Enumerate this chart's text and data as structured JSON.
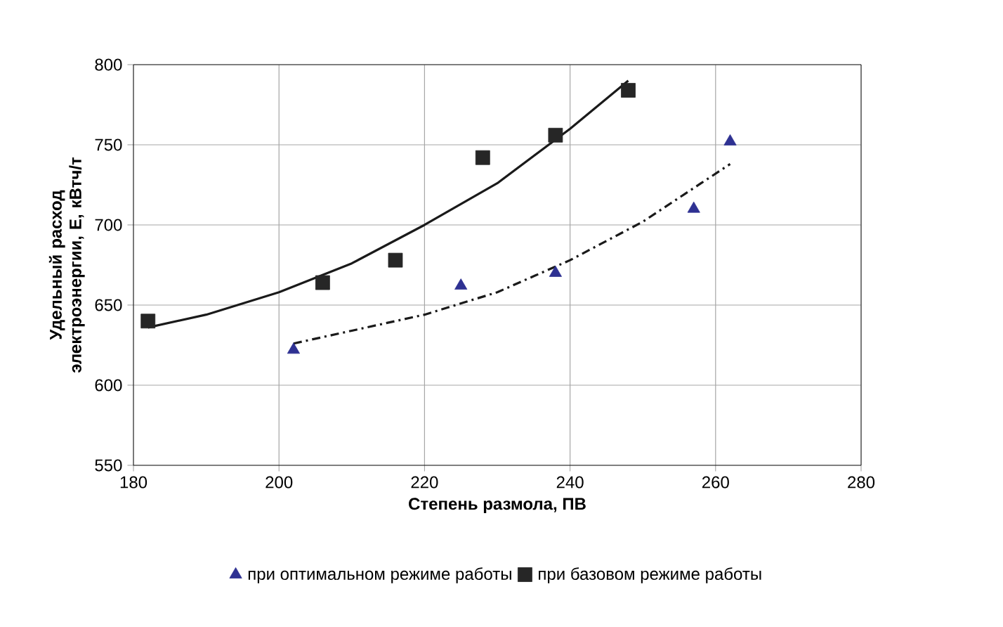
{
  "chart_data": {
    "type": "scatter",
    "xlabel": "Степень размола, ПВ",
    "ylabel": "Удельный расход электроэнергии, Е, кВтч/т",
    "xlim": [
      180,
      280
    ],
    "xticks": [
      180,
      200,
      220,
      240,
      260,
      280
    ],
    "ylim": [
      550,
      800
    ],
    "yticks": [
      550,
      600,
      650,
      700,
      750,
      800
    ],
    "grid": true,
    "legend": "bottom",
    "series": [
      {
        "name": "при оптимальном режиме работы",
        "color": "#2e3192",
        "marker": "triangle",
        "x": [
          202,
          225,
          238,
          257,
          262
        ],
        "values": [
          622,
          662,
          670,
          710,
          752
        ]
      },
      {
        "name": "при базовом режиме работы",
        "color": "#262626",
        "marker": "square",
        "x": [
          182,
          206,
          216,
          228,
          238,
          248
        ],
        "values": [
          640,
          664,
          678,
          742,
          756,
          784
        ]
      },
      {
        "type": "line",
        "color": "#1a1a1a",
        "line_style": "solid",
        "marker": "none",
        "x": [
          182,
          190,
          200,
          210,
          220,
          230,
          240,
          248
        ],
        "values": [
          636,
          644,
          658,
          676,
          700,
          726,
          760,
          790
        ]
      },
      {
        "type": "line",
        "color": "#1a1a1a",
        "line_style": "dashed",
        "marker": "none",
        "x": [
          202,
          210,
          220,
          230,
          240,
          250,
          258,
          262
        ],
        "values": [
          626,
          634,
          644,
          658,
          678,
          702,
          726,
          738
        ]
      }
    ]
  }
}
